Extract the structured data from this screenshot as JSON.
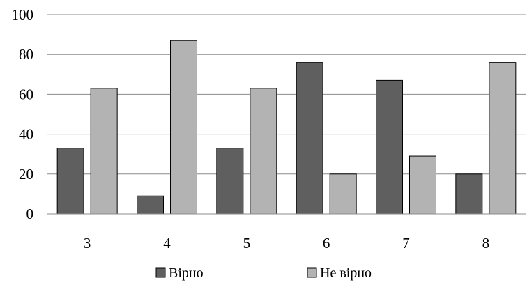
{
  "chart_data": {
    "type": "bar",
    "categories": [
      "3",
      "4",
      "5",
      "6",
      "7",
      "8"
    ],
    "series": [
      {
        "name": "Вірно",
        "values": [
          33,
          9,
          33,
          76,
          67,
          20
        ],
        "color": "#5f5f5f"
      },
      {
        "name": "Не вірно",
        "values": [
          63,
          87,
          63,
          20,
          29,
          76
        ],
        "color": "#b3b3b3"
      }
    ],
    "ylim": [
      0,
      100
    ],
    "yticks": [
      0,
      20,
      40,
      60,
      80,
      100
    ],
    "grid": true,
    "legend_position": "bottom",
    "title": "",
    "xlabel": "",
    "ylabel": ""
  }
}
